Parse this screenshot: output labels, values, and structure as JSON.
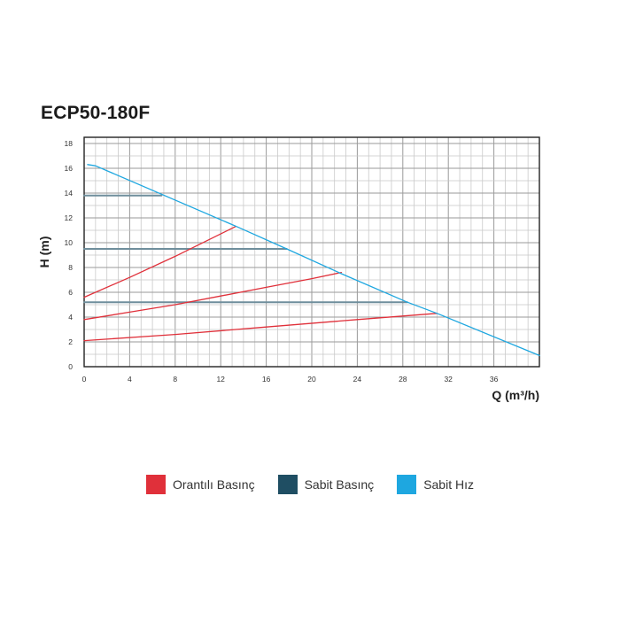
{
  "chart_data": {
    "type": "line",
    "title": "ECP50-180F",
    "xlabel": "Q (m³/h)",
    "ylabel": "H (m)",
    "xlim": [
      0,
      40
    ],
    "ylim": [
      0,
      18.5
    ],
    "xticks": [
      0,
      4,
      8,
      12,
      16,
      20,
      24,
      28,
      32,
      36
    ],
    "yticks": [
      0,
      2,
      4,
      6,
      8,
      10,
      12,
      14,
      16,
      18
    ],
    "grid": true,
    "legend_position": "bottom",
    "legend": [
      {
        "label": "Orantılı Basınç",
        "color": "#e0303a"
      },
      {
        "label": "Sabit Basınç",
        "color": "#1f4e63"
      },
      {
        "label": "Sabit Hız",
        "color": "#1ea7e0"
      }
    ],
    "series": [
      {
        "group": "Sabit Hız",
        "color": "#1ea7e0",
        "points": [
          [
            0.3,
            16.3
          ],
          [
            1,
            16.2
          ],
          [
            13.4,
            11.3
          ],
          [
            17.8,
            9.5
          ],
          [
            22.6,
            7.5
          ],
          [
            28.4,
            5.2
          ],
          [
            31,
            4.3
          ],
          [
            40,
            0.9
          ]
        ]
      },
      {
        "group": "Sabit Basınç",
        "color": "#6f8e9c",
        "points": [
          [
            0,
            13.8
          ],
          [
            6.8,
            13.8
          ]
        ]
      },
      {
        "group": "Sabit Basınç",
        "color": "#6f8e9c",
        "points": [
          [
            0,
            9.5
          ],
          [
            17.8,
            9.5
          ]
        ]
      },
      {
        "group": "Sabit Basınç",
        "color": "#6f8e9c",
        "points": [
          [
            0,
            5.2
          ],
          [
            28.4,
            5.2
          ]
        ]
      },
      {
        "group": "Orantılı Basınç",
        "color": "#e0303a",
        "points": [
          [
            0,
            5.6
          ],
          [
            4,
            7.2
          ],
          [
            8,
            8.9
          ],
          [
            13.3,
            11.3
          ]
        ]
      },
      {
        "group": "Orantılı Basınç",
        "color": "#e0303a",
        "points": [
          [
            0,
            3.8
          ],
          [
            4,
            4.4
          ],
          [
            8,
            5.0
          ],
          [
            12,
            5.7
          ],
          [
            16,
            6.4
          ],
          [
            20,
            7.1
          ],
          [
            22.6,
            7.6
          ]
        ]
      },
      {
        "group": "Orantılı Basınç",
        "color": "#e0303a",
        "points": [
          [
            0,
            2.1
          ],
          [
            8,
            2.6
          ],
          [
            16,
            3.2
          ],
          [
            24,
            3.8
          ],
          [
            31,
            4.3
          ]
        ]
      }
    ]
  }
}
